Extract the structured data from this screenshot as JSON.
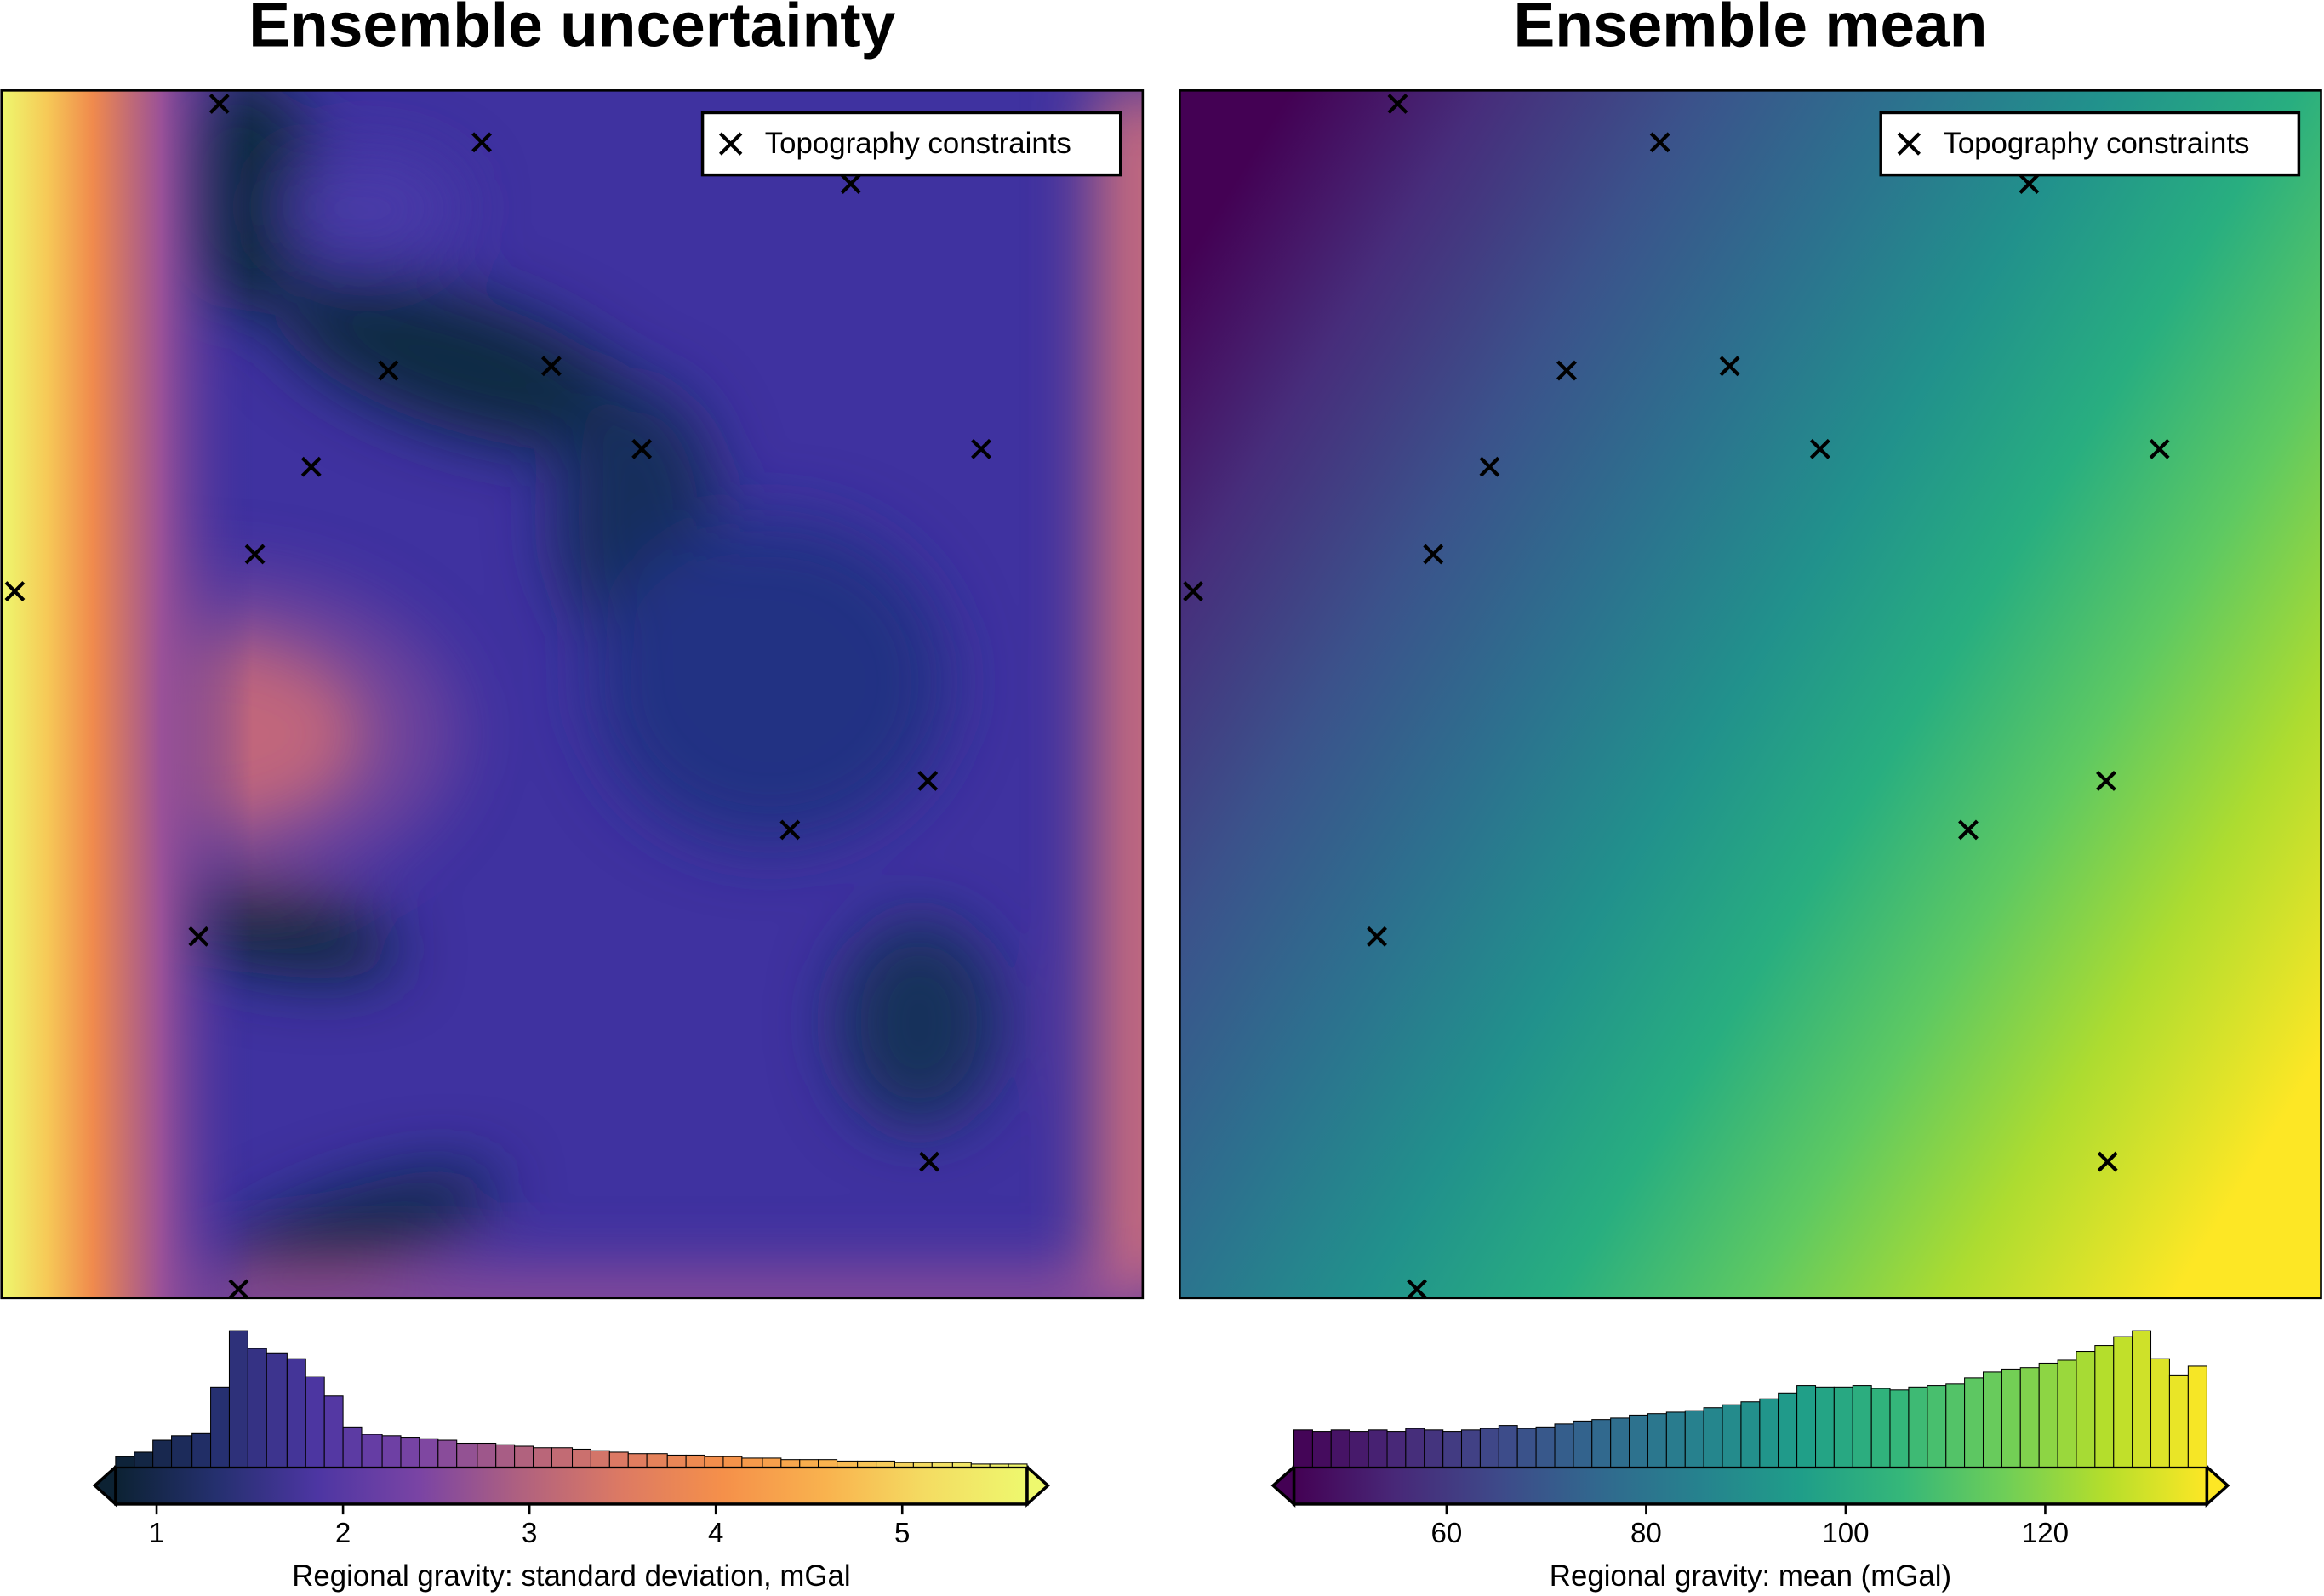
{
  "chart_data": [
    {
      "type": "map",
      "title": "Ensemble uncertainty",
      "legend": "Topography constraints",
      "colorbar": {
        "label": "Regional gravity:  standard deviation, mGal",
        "xlim": [
          0.78,
          5.67
        ],
        "xticks": [
          1,
          2,
          3,
          4,
          5
        ],
        "colormap": [
          "#0c2233",
          "#25306f",
          "#4d36a3",
          "#7a44a4",
          "#b0617f",
          "#dd7a63",
          "#f5904a",
          "#f9b24e",
          "#f4dc62",
          "#eef86e"
        ]
      },
      "histogram": {
        "bins": [
          0.78,
          0.88,
          0.98,
          1.08,
          1.19,
          1.29,
          1.39,
          1.49,
          1.59,
          1.7,
          1.8,
          1.9,
          2.0,
          2.1,
          2.21,
          2.31,
          2.41,
          2.51,
          2.61,
          2.72,
          2.82,
          2.92,
          3.02,
          3.12,
          3.23,
          3.33,
          3.43,
          3.53,
          3.63,
          3.74,
          3.84,
          3.94,
          4.04,
          4.14,
          4.25,
          4.35,
          4.45,
          4.55,
          4.65,
          4.76,
          4.86,
          4.96,
          5.06,
          5.16,
          5.27,
          5.37,
          5.47,
          5.57,
          5.67
        ],
        "counts": [
          7,
          10,
          18,
          21,
          23,
          54,
          92,
          80,
          77,
          73,
          61,
          48,
          27,
          22,
          21,
          20,
          19,
          18,
          16,
          16,
          15,
          14,
          13,
          13,
          12,
          11,
          10,
          9,
          9,
          8,
          8,
          7,
          7,
          6,
          6,
          5,
          5,
          5,
          4,
          4,
          4,
          3,
          3,
          3,
          3,
          2,
          2,
          2
        ]
      }
    },
    {
      "type": "map",
      "title": "Ensemble mean",
      "legend": "Topography constraints",
      "colorbar": {
        "label": "Regional gravity:  mean (mGal)",
        "xlim": [
          44.7,
          136.2
        ],
        "xticks": [
          60,
          80,
          100,
          120
        ],
        "colormap": [
          "#440154",
          "#482878",
          "#3e4989",
          "#31688e",
          "#26828e",
          "#1f9e89",
          "#35b779",
          "#6ece58",
          "#b5de2b",
          "#fde725"
        ]
      },
      "histogram": {
        "bins": [
          44.7,
          46.57,
          48.43,
          50.3,
          52.17,
          54.04,
          55.9,
          57.77,
          59.64,
          61.5,
          63.37,
          65.24,
          67.1,
          68.97,
          70.84,
          72.71,
          74.57,
          76.44,
          78.31,
          80.17,
          82.04,
          83.91,
          85.77,
          87.64,
          89.51,
          91.38,
          93.24,
          95.11,
          96.98,
          98.84,
          100.71,
          102.58,
          104.44,
          106.31,
          108.18,
          110.05,
          111.91,
          113.78,
          115.65,
          117.51,
          119.38,
          121.25,
          123.11,
          124.98,
          126.85,
          128.72,
          130.58,
          132.45,
          134.32,
          136.2
        ],
        "counts": [
          25,
          24,
          25,
          24,
          25,
          24,
          26,
          25,
          24,
          25,
          26,
          28,
          26,
          27,
          29,
          31,
          32,
          33,
          35,
          36,
          37,
          38,
          40,
          42,
          44,
          46,
          50,
          55,
          54,
          54,
          55,
          53,
          52,
          54,
          55,
          56,
          60,
          64,
          66,
          67,
          70,
          72,
          78,
          82,
          88,
          92,
          73,
          62,
          68
        ]
      }
    }
  ]
}
